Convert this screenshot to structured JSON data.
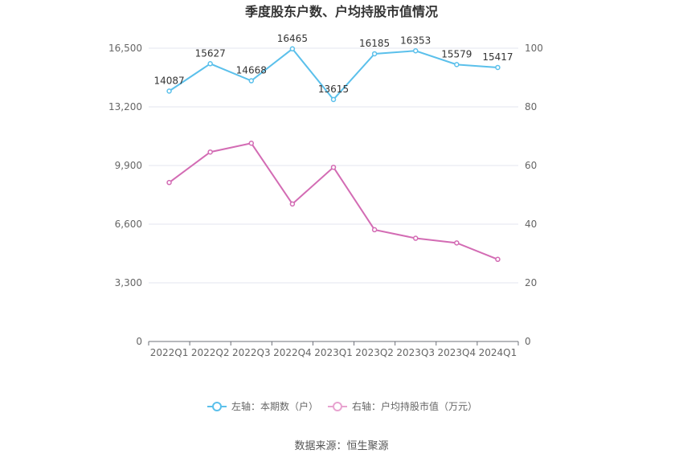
{
  "chart_data": {
    "type": "line",
    "title": "季度股东户数、户均持股市值情况",
    "categories": [
      "2022Q1",
      "2022Q2",
      "2022Q3",
      "2022Q4",
      "2023Q1",
      "2023Q2",
      "2023Q3",
      "2023Q4",
      "2024Q1"
    ],
    "left_axis": {
      "min": 0,
      "max": 16500,
      "ticks": [
        "0",
        "3,300",
        "6,600",
        "9,900",
        "13,200",
        "16,500"
      ]
    },
    "right_axis": {
      "min": 0,
      "max": 100,
      "ticks": [
        "0",
        "20",
        "40",
        "60",
        "80",
        "100"
      ]
    },
    "grid": true,
    "legend_position": "bottom",
    "series": [
      {
        "name": "左轴：本期数（户）",
        "axis": "left",
        "color": "#5bc0eb",
        "values": [
          14087,
          15627,
          14668,
          16465,
          13615,
          16185,
          16353,
          15579,
          15417
        ],
        "labels": [
          "14087",
          "15627",
          "14668",
          "16465",
          "13615",
          "16185",
          "16353",
          "15579",
          "15417"
        ]
      },
      {
        "name": "右轴：户均持股市值（万元）",
        "axis": "right",
        "color": "#d36cb4",
        "legend_color": "#e8a3d0",
        "values": [
          54.2,
          64.6,
          67.6,
          46.9,
          59.4,
          38.1,
          35.2,
          33.6,
          28.0
        ]
      }
    ]
  },
  "source": "数据来源：恒生聚源"
}
